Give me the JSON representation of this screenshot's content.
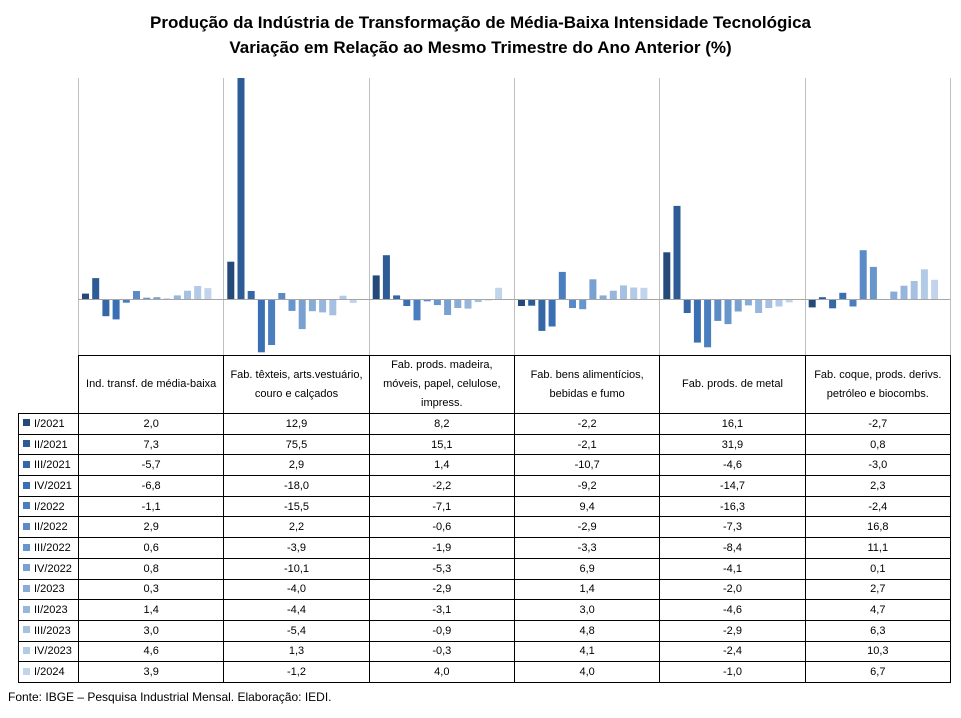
{
  "title": "Produção da Indústria de Transformação de Média-Baixa Intensidade Tecnológica",
  "subtitle": "Variação em Relação ao Mesmo Trimestre do Ano Anterior (%)",
  "source": "Fonte: IBGE – Pesquisa Industrial Mensal. Elaboração: IEDI.",
  "chart_data": {
    "type": "bar",
    "title": "Produção da Indústria de Transformação de Média-Baixa Intensidade Tecnológica",
    "subtitle": "Variação em Relação ao Mesmo Trimestre do Ano Anterior (%)",
    "categories": [
      "Ind. transf. de média-baixa",
      "Fab. têxteis, arts.vestuário, couro e calçados",
      "Fab. prods. madeira, móveis, papel, celulose, impress.",
      "Fab. bens alimentícios, bebidas e fumo",
      "Fab. prods. de metal",
      "Fab. coque, prods. derivs. petróleo e biocombs."
    ],
    "ylim": [
      -18.0,
      75.5
    ],
    "grid": false,
    "legend": "table-left",
    "series": [
      {
        "name": "I/2021",
        "color": "#254a7a",
        "values": [
          2.0,
          12.9,
          8.2,
          -2.2,
          16.1,
          -2.7
        ]
      },
      {
        "name": "II/2021",
        "color": "#2d5b95",
        "values": [
          7.3,
          75.5,
          15.1,
          -2.1,
          31.9,
          0.8
        ]
      },
      {
        "name": "III/2021",
        "color": "#3566a6",
        "values": [
          -5.7,
          2.9,
          1.4,
          -10.7,
          -4.6,
          -3.0
        ]
      },
      {
        "name": "IV/2021",
        "color": "#3b6fb3",
        "values": [
          -6.8,
          -18.0,
          -2.2,
          -9.2,
          -14.7,
          2.3
        ]
      },
      {
        "name": "I/2022",
        "color": "#4a7ebf",
        "values": [
          -1.1,
          -15.5,
          -7.1,
          9.4,
          -16.3,
          -2.4
        ]
      },
      {
        "name": "II/2022",
        "color": "#5b8ac6",
        "values": [
          2.9,
          2.2,
          -0.6,
          -2.9,
          -7.3,
          16.8
        ]
      },
      {
        "name": "III/2022",
        "color": "#6895cc",
        "values": [
          0.6,
          -3.9,
          -1.9,
          -3.3,
          -8.4,
          11.1
        ]
      },
      {
        "name": "IV/2022",
        "color": "#78a1d2",
        "values": [
          0.8,
          -10.1,
          -5.3,
          6.9,
          -4.1,
          0.1
        ]
      },
      {
        "name": "I/2023",
        "color": "#89acd7",
        "values": [
          0.3,
          -4.0,
          -2.9,
          1.4,
          -2.0,
          2.7
        ]
      },
      {
        "name": "II/2023",
        "color": "#97b6dc",
        "values": [
          1.4,
          -4.4,
          -3.1,
          3.0,
          -4.6,
          4.7
        ]
      },
      {
        "name": "III/2023",
        "color": "#a5c0e1",
        "values": [
          3.0,
          -5.4,
          -0.9,
          4.8,
          -2.9,
          6.3
        ]
      },
      {
        "name": "IV/2023",
        "color": "#b3cae6",
        "values": [
          4.6,
          1.3,
          -0.3,
          4.1,
          -2.4,
          10.3
        ]
      },
      {
        "name": "I/2024",
        "color": "#c2d4eb",
        "values": [
          3.9,
          -1.2,
          4.0,
          4.0,
          -1.0,
          6.7
        ]
      }
    ],
    "table_values": [
      [
        "2,0",
        "12,9",
        "8,2",
        "-2,2",
        "16,1",
        "-2,7"
      ],
      [
        "7,3",
        "75,5",
        "15,1",
        "-2,1",
        "31,9",
        "0,8"
      ],
      [
        "-5,7",
        "2,9",
        "1,4",
        "-10,7",
        "-4,6",
        "-3,0"
      ],
      [
        "-6,8",
        "-18,0",
        "-2,2",
        "-9,2",
        "-14,7",
        "2,3"
      ],
      [
        "-1,1",
        "-15,5",
        "-7,1",
        "9,4",
        "-16,3",
        "-2,4"
      ],
      [
        "2,9",
        "2,2",
        "-0,6",
        "-2,9",
        "-7,3",
        "16,8"
      ],
      [
        "0,6",
        "-3,9",
        "-1,9",
        "-3,3",
        "-8,4",
        "11,1"
      ],
      [
        "0,8",
        "-10,1",
        "-5,3",
        "6,9",
        "-4,1",
        "0,1"
      ],
      [
        "0,3",
        "-4,0",
        "-2,9",
        "1,4",
        "-2,0",
        "2,7"
      ],
      [
        "1,4",
        "-4,4",
        "-3,1",
        "3,0",
        "-4,6",
        "4,7"
      ],
      [
        "3,0",
        "-5,4",
        "-0,9",
        "4,8",
        "-2,9",
        "6,3"
      ],
      [
        "4,6",
        "1,3",
        "-0,3",
        "4,1",
        "-2,4",
        "10,3"
      ],
      [
        "3,9",
        "-1,2",
        "4,0",
        "4,0",
        "-1,0",
        "6,7"
      ]
    ]
  }
}
